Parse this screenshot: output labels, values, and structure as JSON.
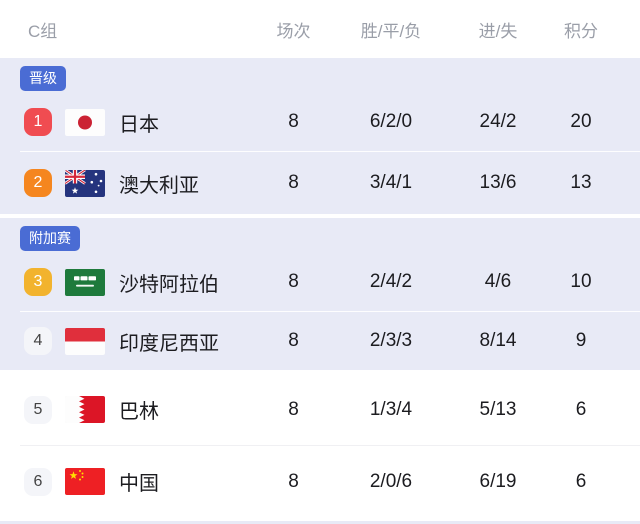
{
  "header": {
    "group": "C组",
    "columns": {
      "matches": "场次",
      "wdl": "胜/平/负",
      "goals": "进/失",
      "points": "积分"
    }
  },
  "zones": {
    "qualified": {
      "label": "晋级",
      "color": "#4a6cd4"
    },
    "playoff": {
      "label": "附加赛",
      "color": "#4a6cd4"
    }
  },
  "colors": {
    "zone_background": "#e8eaf6",
    "rank1": "#f04c51",
    "rank2": "#f5861f",
    "rank3": "#f2b32e"
  },
  "table": {
    "rows": [
      {
        "rank": "1",
        "rank_color": "#f04c51",
        "flag": "japan",
        "name": "日本",
        "played": "8",
        "wdl": "6/2/0",
        "goals": "24/2",
        "points": "20"
      },
      {
        "rank": "2",
        "rank_color": "#f5861f",
        "flag": "australia",
        "name": "澳大利亚",
        "played": "8",
        "wdl": "3/4/1",
        "goals": "13/6",
        "points": "13"
      },
      {
        "rank": "3",
        "rank_color": "#f2b32e",
        "flag": "saudi-arabia",
        "name": "沙特阿拉伯",
        "played": "8",
        "wdl": "2/4/2",
        "goals": "4/6",
        "points": "10"
      },
      {
        "rank": "4",
        "rank_color": "",
        "flag": "indonesia",
        "name": "印度尼西亚",
        "played": "8",
        "wdl": "2/3/3",
        "goals": "8/14",
        "points": "9"
      },
      {
        "rank": "5",
        "rank_color": "",
        "flag": "bahrain",
        "name": "巴林",
        "played": "8",
        "wdl": "1/3/4",
        "goals": "5/13",
        "points": "6"
      },
      {
        "rank": "6",
        "rank_color": "",
        "flag": "china",
        "name": "中国",
        "played": "8",
        "wdl": "2/0/6",
        "goals": "6/19",
        "points": "6"
      }
    ]
  }
}
